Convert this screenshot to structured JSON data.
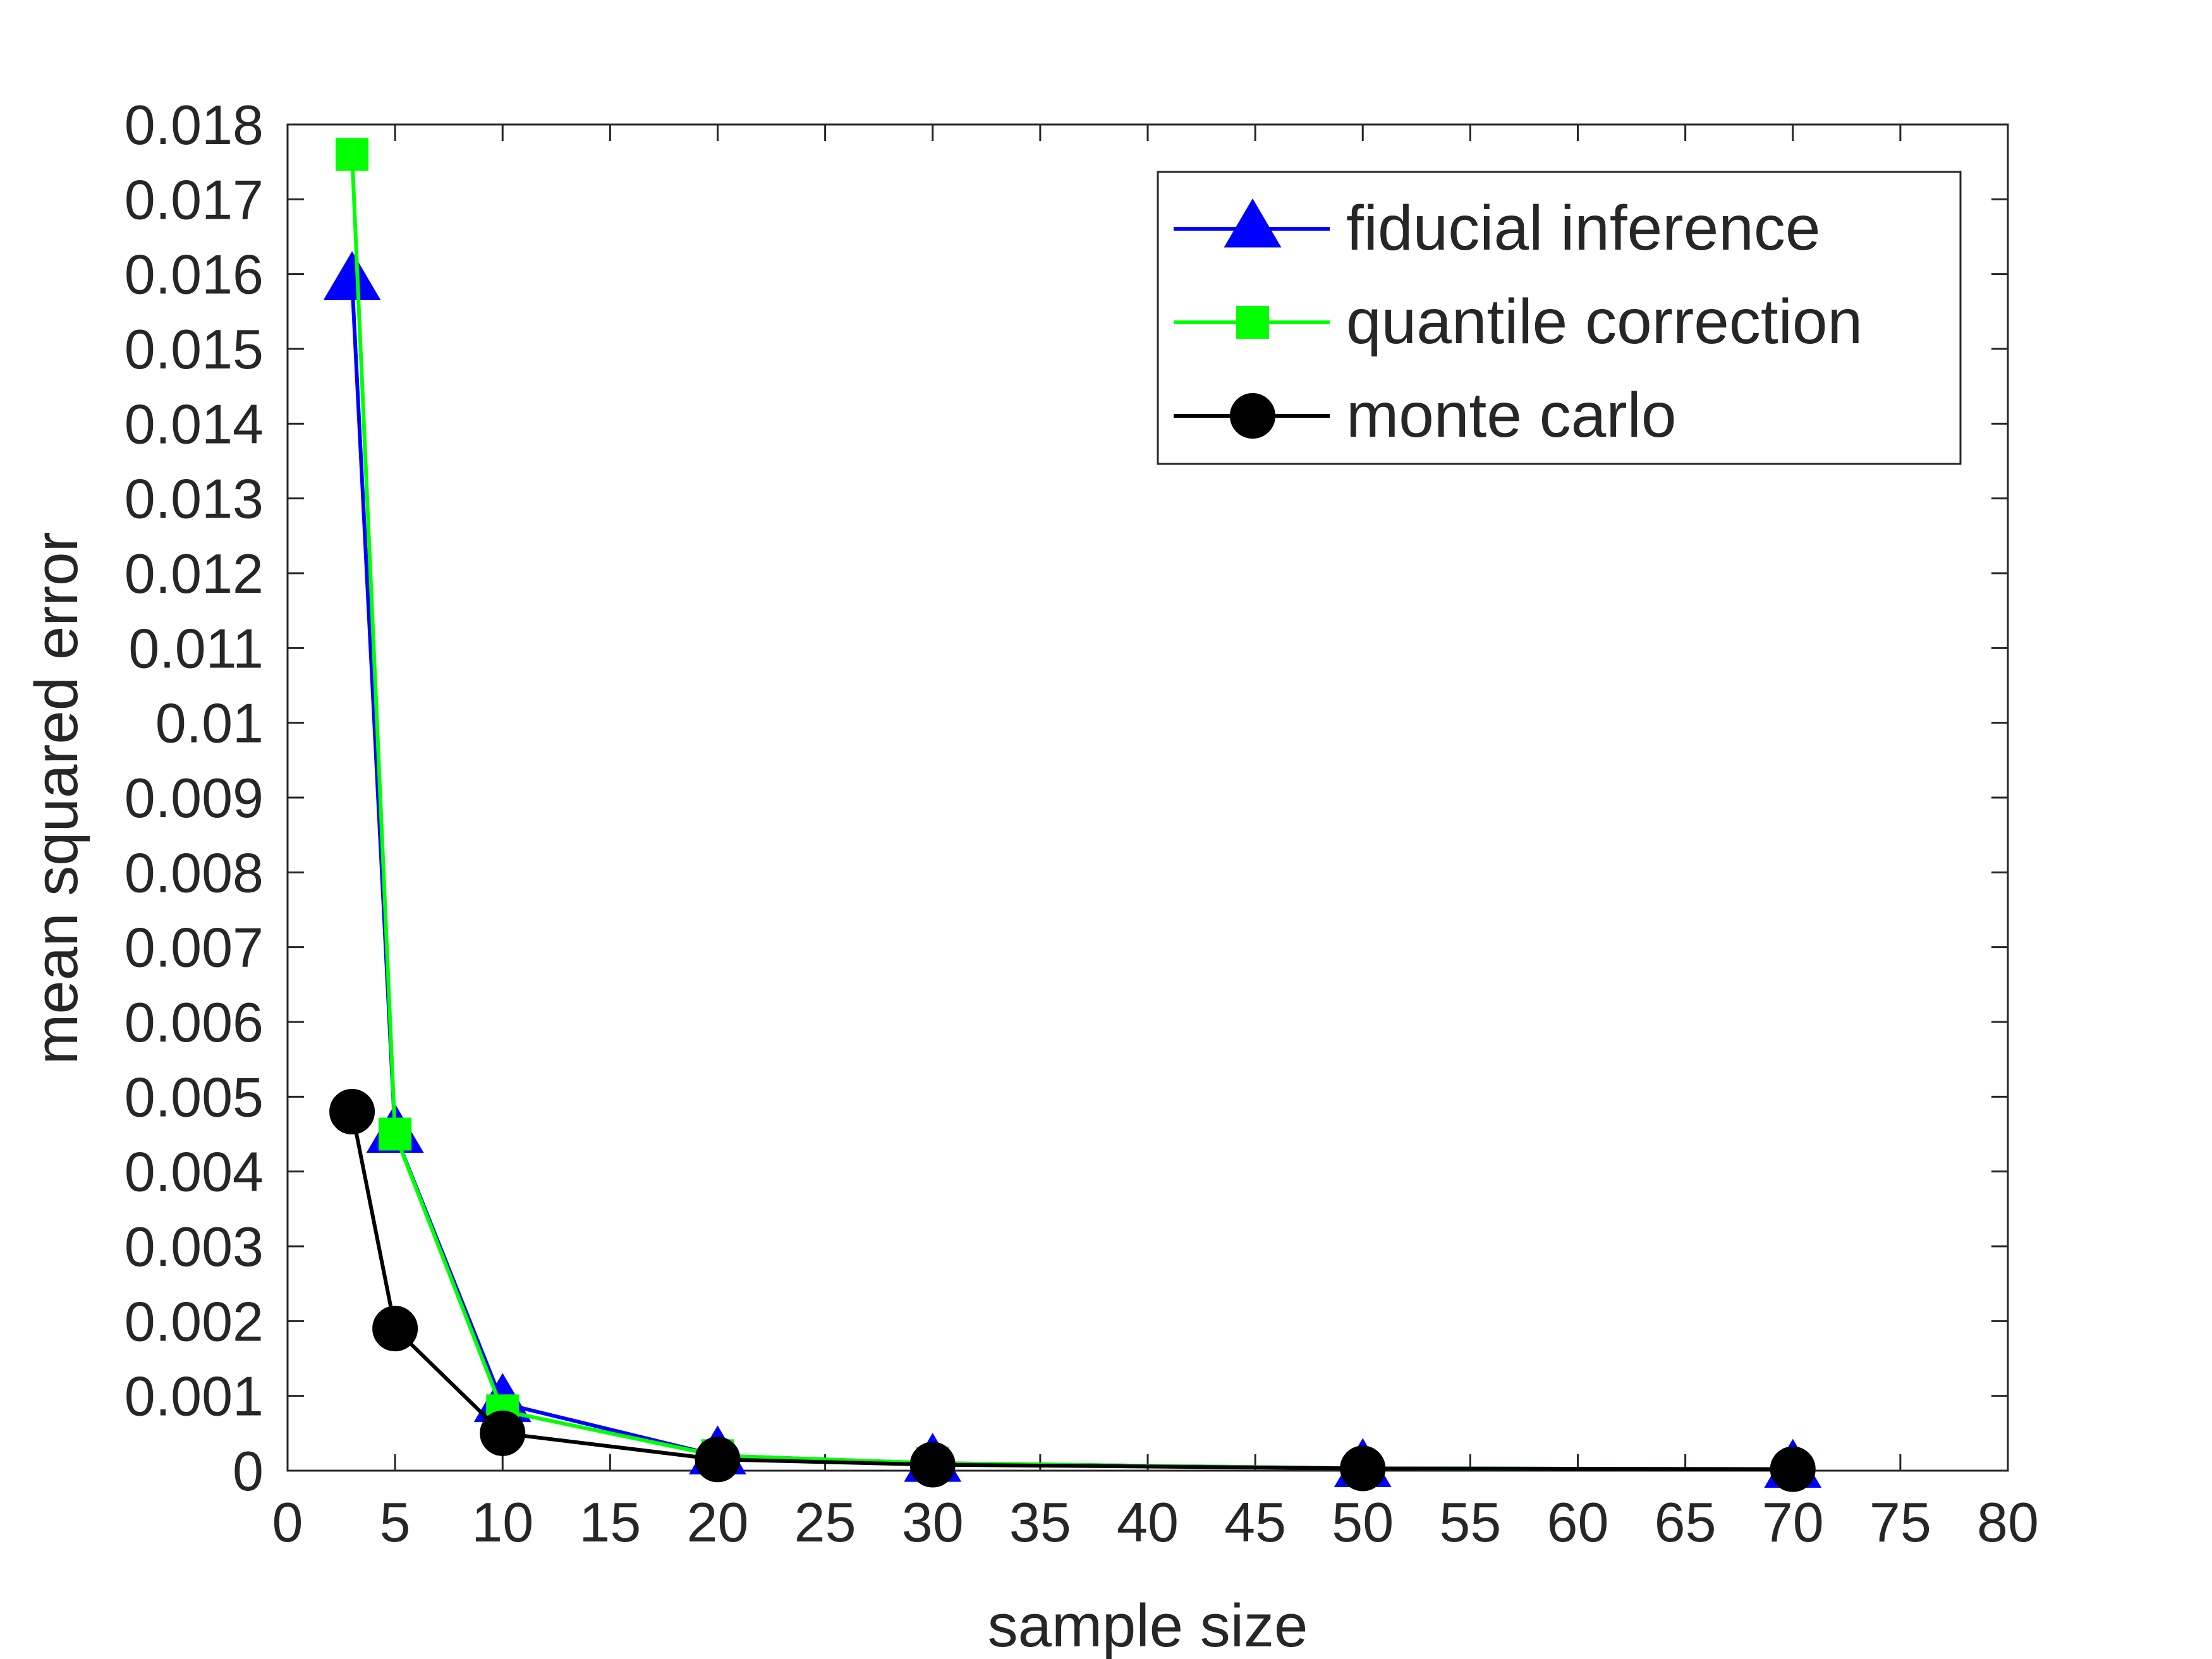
{
  "chart_data": {
    "type": "line",
    "title": "",
    "xlabel": "sample size",
    "ylabel": "mean squared error",
    "xlim": [
      0,
      80
    ],
    "ylim": [
      0,
      0.018
    ],
    "xticks": [
      0,
      5,
      10,
      15,
      20,
      25,
      30,
      35,
      40,
      45,
      50,
      55,
      60,
      65,
      70,
      75,
      80
    ],
    "xtick_labels": [
      "0",
      "5",
      "10",
      "15",
      "20",
      "25",
      "30",
      "35",
      "40",
      "45",
      "50",
      "55",
      "60",
      "65",
      "70",
      "75",
      "80"
    ],
    "yticks": [
      0,
      0.001,
      0.002,
      0.003,
      0.004,
      0.005,
      0.006,
      0.007,
      0.008,
      0.009,
      0.01,
      0.011,
      0.012,
      0.013,
      0.014,
      0.015,
      0.016,
      0.017,
      0.018
    ],
    "ytick_labels": [
      "0",
      "0.001",
      "0.002",
      "0.003",
      "0.004",
      "0.005",
      "0.006",
      "0.007",
      "0.008",
      "0.009",
      "0.01",
      "0.011",
      "0.012",
      "0.013",
      "0.014",
      "0.015",
      "0.016",
      "0.017",
      "0.018"
    ],
    "grid": false,
    "legend_position": "top-right",
    "x": [
      3,
      5,
      10,
      20,
      30,
      50,
      70
    ],
    "series": [
      {
        "name": "fiducial inference",
        "marker": "triangle",
        "color": "#0000FF",
        "values": [
          0.0159,
          0.0045,
          0.0009,
          0.0002,
          0.0001,
          3e-05,
          2e-05
        ]
      },
      {
        "name": "quantile correction",
        "marker": "square",
        "color": "#00FF00",
        "values": [
          0.0176,
          0.0045,
          0.0008,
          0.0002,
          0.0001,
          3e-05,
          2e-05
        ]
      },
      {
        "name": "monte carlo",
        "marker": "circle",
        "color": "#000000",
        "values": [
          0.0048,
          0.0019,
          0.0005,
          0.00015,
          8e-05,
          3e-05,
          2e-05
        ]
      }
    ]
  }
}
